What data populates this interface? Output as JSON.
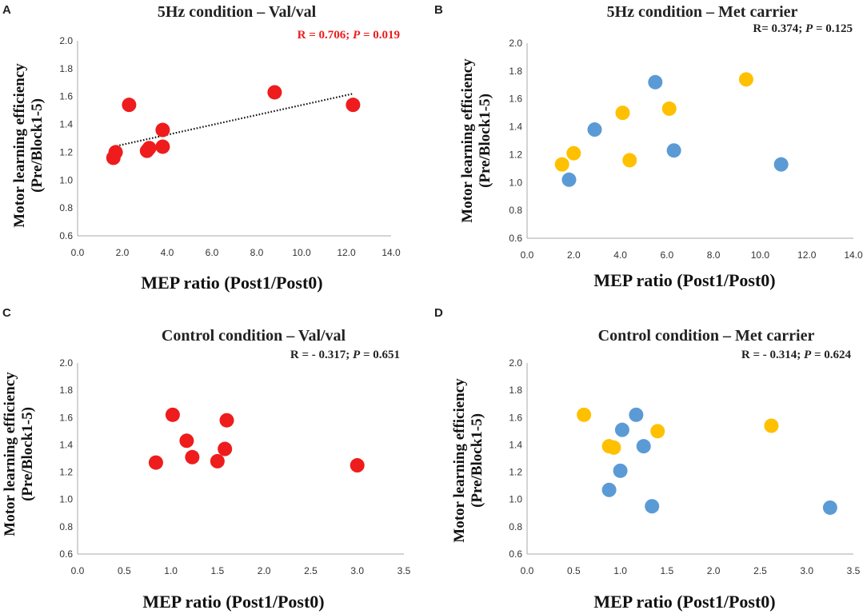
{
  "colors": {
    "red": "#ee1c1c",
    "blue": "#5b9bd5",
    "gold": "#ffc000",
    "stat_red": "#ee1c1c",
    "stat_black": "#222222",
    "trend": "#111111"
  },
  "axes_common": {
    "xlabel": "MEP ratio (Post1/Post0)",
    "ylabel_line1": "Motor learning efficiency",
    "ylabel_line2": "(Pre/Block1-5)",
    "ylim": [
      0.6,
      2.0
    ],
    "yticks": [
      "0.6",
      "0.8",
      "1.0",
      "1.2",
      "1.4",
      "1.6",
      "1.8",
      "2.0"
    ]
  },
  "chart_data": [
    {
      "id": "A",
      "type": "scatter",
      "panel_letter": "A",
      "title": "5Hz condition – Val/val",
      "stat": {
        "r_text": "R = 0.706; ",
        "p_label": "P",
        "p_text": " = 0.019",
        "color": "red"
      },
      "xlabel": "MEP ratio (Post1/Post0)",
      "ylabel": "Motor learning efficiency (Pre/Block1-5)",
      "xlim": [
        0.0,
        14.0
      ],
      "ylim": [
        0.6,
        2.0
      ],
      "xticks": [
        "0.0",
        "2.0",
        "4.0",
        "6.0",
        "8.0",
        "10.0",
        "12.0",
        "14.0"
      ],
      "trendline": {
        "x": [
          1.6,
          12.3
        ],
        "y": [
          1.24,
          1.62
        ]
      },
      "series": [
        {
          "name": "Val/val",
          "color": "red",
          "points": [
            {
              "x": 1.6,
              "y": 1.16
            },
            {
              "x": 1.7,
              "y": 1.2
            },
            {
              "x": 2.3,
              "y": 1.54
            },
            {
              "x": 3.1,
              "y": 1.21
            },
            {
              "x": 3.2,
              "y": 1.23
            },
            {
              "x": 3.8,
              "y": 1.36
            },
            {
              "x": 3.8,
              "y": 1.24
            },
            {
              "x": 8.8,
              "y": 1.63
            },
            {
              "x": 12.3,
              "y": 1.54
            }
          ]
        }
      ]
    },
    {
      "id": "B",
      "type": "scatter",
      "panel_letter": "B",
      "title": "5Hz condition – Met carrier",
      "stat": {
        "r_text": "R= 0.374; ",
        "p_label": "P",
        "p_text": " = 0.125",
        "color": "stat_black"
      },
      "xlabel": "MEP ratio (Post1/Post0)",
      "ylabel": "Motor learning efficiency (Pre/Block1-5)",
      "xlim": [
        0.0,
        14.0
      ],
      "ylim": [
        0.6,
        2.0
      ],
      "xticks": [
        "0.0",
        "2.0",
        "4.0",
        "6.0",
        "8.0",
        "10.0",
        "12.0",
        "14.0"
      ],
      "series": [
        {
          "name": "blue",
          "color": "blue",
          "points": [
            {
              "x": 1.8,
              "y": 1.02
            },
            {
              "x": 2.9,
              "y": 1.38
            },
            {
              "x": 5.5,
              "y": 1.72
            },
            {
              "x": 6.3,
              "y": 1.23
            },
            {
              "x": 10.9,
              "y": 1.13
            }
          ]
        },
        {
          "name": "gold",
          "color": "gold",
          "points": [
            {
              "x": 1.5,
              "y": 1.13
            },
            {
              "x": 2.0,
              "y": 1.21
            },
            {
              "x": 4.1,
              "y": 1.5
            },
            {
              "x": 4.4,
              "y": 1.16
            },
            {
              "x": 6.1,
              "y": 1.53
            },
            {
              "x": 9.4,
              "y": 1.74
            }
          ]
        }
      ]
    },
    {
      "id": "C",
      "type": "scatter",
      "panel_letter": "C",
      "title": "Control condition – Val/val",
      "stat": {
        "r_text": "R = - 0.317; ",
        "p_label": "P",
        "p_text": " = 0.651",
        "color": "stat_black"
      },
      "xlabel": "MEP ratio (Post1/Post0)",
      "ylabel": "Motor learning efficiency (Pre/Block1-5)",
      "xlim": [
        0.0,
        3.5
      ],
      "ylim": [
        0.6,
        2.0
      ],
      "xticks": [
        "0.0",
        "0.5",
        "1.0",
        "1.5",
        "2.0",
        "2.5",
        "3.0",
        "3.5"
      ],
      "series": [
        {
          "name": "Val/val",
          "color": "red",
          "points": [
            {
              "x": 0.84,
              "y": 1.27
            },
            {
              "x": 1.02,
              "y": 1.62
            },
            {
              "x": 1.17,
              "y": 1.43
            },
            {
              "x": 1.23,
              "y": 1.31
            },
            {
              "x": 1.5,
              "y": 1.28
            },
            {
              "x": 1.58,
              "y": 1.37
            },
            {
              "x": 1.6,
              "y": 1.58
            },
            {
              "x": 3.0,
              "y": 1.25
            }
          ]
        }
      ]
    },
    {
      "id": "D",
      "type": "scatter",
      "panel_letter": "D",
      "title": "Control condition – Met carrier",
      "stat": {
        "r_text": "R = - 0.314; ",
        "p_label": "P",
        "p_text": " = 0.624",
        "color": "stat_black"
      },
      "xlabel": "MEP ratio (Post1/Post0)",
      "ylabel": "Motor learning efficiency (Pre/Block1-5)",
      "xlim": [
        0.0,
        3.5
      ],
      "ylim": [
        0.6,
        2.0
      ],
      "xticks": [
        "0.0",
        "0.5",
        "1.0",
        "1.5",
        "2.0",
        "2.5",
        "3.0",
        "3.5"
      ],
      "series": [
        {
          "name": "blue",
          "color": "blue",
          "points": [
            {
              "x": 0.88,
              "y": 1.07
            },
            {
              "x": 1.0,
              "y": 1.21
            },
            {
              "x": 1.02,
              "y": 1.51
            },
            {
              "x": 1.17,
              "y": 1.62
            },
            {
              "x": 1.25,
              "y": 1.39
            },
            {
              "x": 1.34,
              "y": 0.95
            },
            {
              "x": 3.25,
              "y": 0.94
            }
          ]
        },
        {
          "name": "gold",
          "color": "gold",
          "points": [
            {
              "x": 0.61,
              "y": 1.62
            },
            {
              "x": 0.88,
              "y": 1.39
            },
            {
              "x": 0.93,
              "y": 1.38
            },
            {
              "x": 1.4,
              "y": 1.5
            },
            {
              "x": 2.62,
              "y": 1.54
            }
          ]
        }
      ]
    }
  ]
}
